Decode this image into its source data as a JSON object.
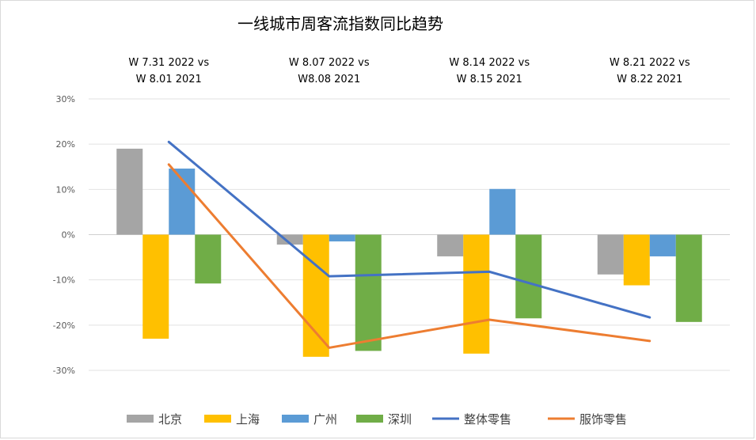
{
  "chart_data": {
    "type": "bar",
    "title": "一线城市周客流指数同比趋势",
    "categories": [
      [
        "W 7.31 2022  vs",
        "W 8.01 2021"
      ],
      [
        "W 8.07 2022  vs",
        "W8.08 2021"
      ],
      [
        "W 8.14 2022  vs",
        "W 8.15 2021"
      ],
      [
        "W 8.21 2022  vs",
        "W 8.22 2021"
      ]
    ],
    "y_ticks": [
      "30%",
      "20%",
      "10%",
      "0%",
      "-10%",
      "-20%",
      "-30%"
    ],
    "ylim": [
      -30,
      30
    ],
    "unit": "%",
    "grid": true,
    "legend_position": "bottom",
    "series": [
      {
        "name": "北京",
        "type": "bar",
        "color": "#a5a5a5",
        "values": [
          19,
          -2.2,
          -4.8,
          -8.8
        ]
      },
      {
        "name": "上海",
        "type": "bar",
        "color": "#ffc000",
        "values": [
          -23,
          -27,
          -26.3,
          -11.2
        ]
      },
      {
        "name": "广州",
        "type": "bar",
        "color": "#5b9bd5",
        "values": [
          14.6,
          -1.5,
          10.1,
          -4.8
        ]
      },
      {
        "name": "深圳",
        "type": "bar",
        "color": "#70ad47",
        "values": [
          -10.8,
          -25.7,
          -18.5,
          -19.3
        ]
      },
      {
        "name": "整体零售",
        "type": "line",
        "color": "#4472c4",
        "values": [
          20.5,
          -9.2,
          -8.2,
          -18.3
        ]
      },
      {
        "name": "服饰零售",
        "type": "line",
        "color": "#ed7d31",
        "values": [
          15.5,
          -25,
          -18.8,
          -23.5
        ]
      }
    ]
  }
}
